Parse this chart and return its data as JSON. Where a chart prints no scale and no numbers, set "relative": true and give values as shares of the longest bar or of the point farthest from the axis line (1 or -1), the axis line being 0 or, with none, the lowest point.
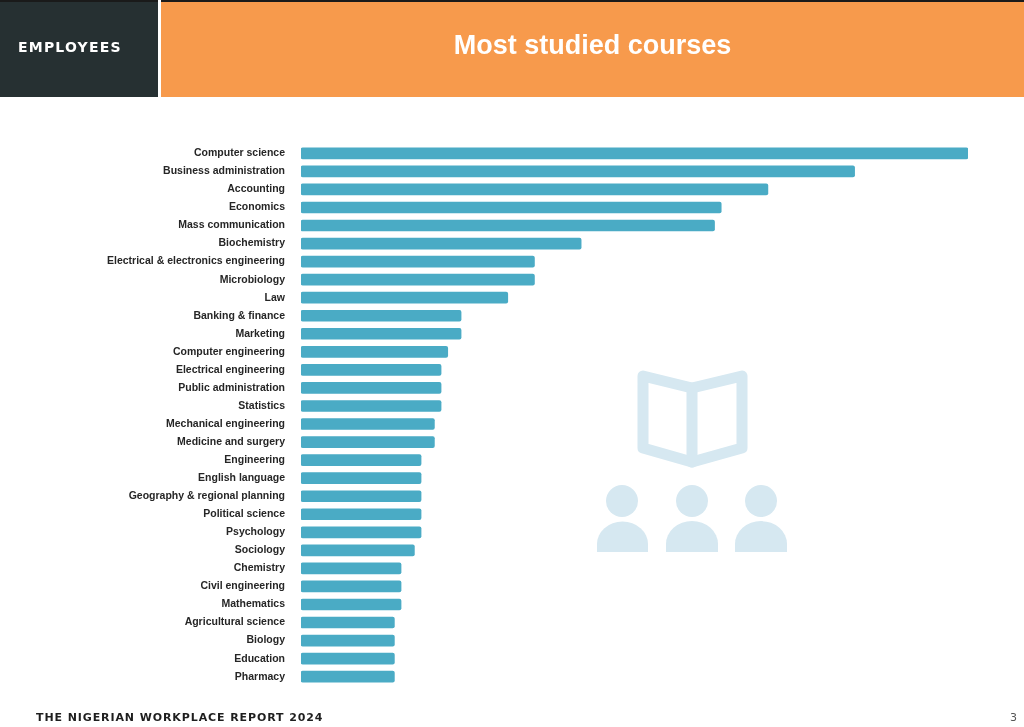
{
  "chart_data": {
    "type": "bar",
    "orientation": "horizontal",
    "relative": true,
    "title": "Most studied courses",
    "subtitle": "EMPLOYEES",
    "categories": [
      "Computer science",
      "Business administration",
      "Accounting",
      "Economics",
      "Mass communication",
      "Biochemistry",
      "Electrical & electronics engineering",
      "Microbiology",
      "Law",
      "Banking & finance",
      "Marketing",
      "Computer engineering",
      "Electrical engineering",
      "Public administration",
      "Statistics",
      "Mechanical engineering",
      "Medicine and surgery",
      "Engineering",
      "English language",
      "Geography & regional planning",
      "Political science",
      "Psychology",
      "Sociology",
      "Chemistry",
      "Civil engineering",
      "Mathematics",
      "Agricultural science",
      "Biology",
      "Education",
      "Pharmacy"
    ],
    "values": [
      1,
      0.83,
      0.7,
      0.63,
      0.62,
      0.42,
      0.35,
      0.35,
      0.31,
      0.24,
      0.24,
      0.22,
      0.21,
      0.21,
      0.21,
      0.2,
      0.2,
      0.18,
      0.18,
      0.18,
      0.18,
      0.18,
      0.17,
      0.15,
      0.15,
      0.15,
      0.14,
      0.14,
      0.14,
      0.14
    ],
    "color": "#4aabc5",
    "annotations": [
      "THE NIGERIAN WORKPLACE REPORT 2024",
      "3"
    ]
  }
}
